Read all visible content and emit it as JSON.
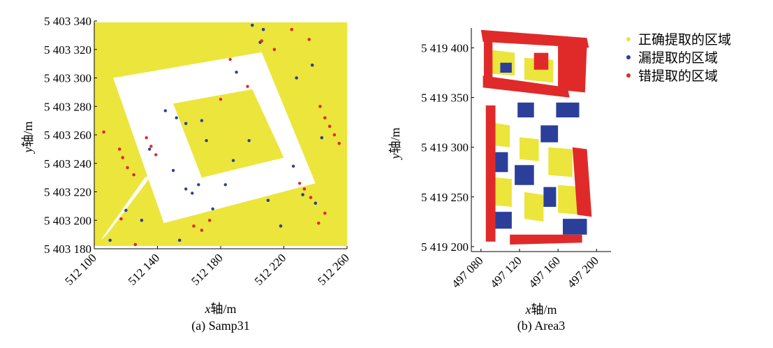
{
  "colors": {
    "correct": "#ece53c",
    "missed": "#2b3f9a",
    "wrong": "#e02a2a"
  },
  "legend": {
    "correct": "正确提取的区域",
    "missed": "漏提取的区域",
    "wrong": "错提取的区域"
  },
  "chart_data": [
    {
      "type": "scatter",
      "caption": "(a) Samp31",
      "xlabel_var": "x",
      "xlabel_rest": "轴/m",
      "ylabel_var": "y",
      "ylabel_rest": "轴/m",
      "xlim": [
        512100,
        512260
      ],
      "ylim": [
        5403180,
        5403340
      ],
      "xticks": [
        512100,
        512140,
        512180,
        512220,
        512260
      ],
      "yticks": [
        5403180,
        5403200,
        5403220,
        5403240,
        5403260,
        5403280,
        5403300,
        5403320,
        5403340
      ],
      "xtick_labels": [
        "512 100",
        "512 140",
        "512 180",
        "512 220",
        "512 260"
      ],
      "ytick_labels": [
        "5 403 180",
        "5 403 200",
        "5 403 220",
        "5 403 240",
        "5 403 260",
        "5 403 280",
        "5 403 300",
        "5 403 320",
        "5 403 340"
      ],
      "series": [
        {
          "name": "正确提取的区域",
          "regions": [
            [
              [
                512100,
                5403339
              ],
              [
                512260,
                5403339
              ],
              [
                512260,
                5403182
              ],
              [
                512100,
                5403182
              ]
            ]
          ]
        },
        {
          "name": "漏提取的区域",
          "points": [
            [
              512145,
              5403277
            ],
            [
              512152,
              5403272
            ],
            [
              512158,
              5403268
            ],
            [
              512168,
              5403270
            ],
            [
              512171,
              5403256
            ],
            [
              512158,
              5403222
            ],
            [
              512162,
              5403219
            ],
            [
              512166,
              5403225
            ],
            [
              512198,
              5403256
            ],
            [
              512188,
              5403242
            ],
            [
              512200,
              5403337
            ],
            [
              512207,
              5403334
            ],
            [
              512190,
              5403304
            ],
            [
              512228,
              5403300
            ],
            [
              512238,
              5403309
            ],
            [
              512232,
              5403218
            ],
            [
              512240,
              5403212
            ],
            [
              512120,
              5403207
            ],
            [
              512130,
              5403200
            ],
            [
              512110,
              5403186
            ],
            [
              512175,
              5403208
            ],
            [
              512183,
              5403225
            ],
            [
              512150,
              5403235
            ],
            [
              512218,
              5403196
            ],
            [
              512244,
              5403258
            ],
            [
              512226,
              5403238
            ],
            [
              512205,
              5403325
            ],
            [
              512210,
              5403214
            ],
            [
              512135,
              5403250
            ],
            [
              512154,
              5403186
            ]
          ]
        },
        {
          "name": "错提取的区域",
          "points": [
            [
              512118,
              5403244
            ],
            [
              512121,
              5403237
            ],
            [
              512125,
              5403232
            ],
            [
              512116,
              5403250
            ],
            [
              512133,
              5403258
            ],
            [
              512136,
              5403252
            ],
            [
              512139,
              5403246
            ],
            [
              512243,
              5403280
            ],
            [
              512246,
              5403272
            ],
            [
              512249,
              5403266
            ],
            [
              512252,
              5403260
            ],
            [
              512255,
              5403254
            ],
            [
              512233,
              5403222
            ],
            [
              512237,
              5403216
            ],
            [
              512230,
              5403226
            ],
            [
              512163,
              5403196
            ],
            [
              512168,
              5403193
            ],
            [
              512173,
              5403200
            ],
            [
              512206,
              5403326
            ],
            [
              512214,
              5403320
            ],
            [
              512236,
              5403327
            ],
            [
              512186,
              5403313
            ],
            [
              512180,
              5403285
            ],
            [
              512197,
              5403294
            ],
            [
              512117,
              5403201
            ],
            [
              512126,
              5403183
            ],
            [
              512246,
              5403205
            ],
            [
              512242,
              5403198
            ],
            [
              512106,
              5403262
            ],
            [
              512225,
              5403334
            ]
          ]
        }
      ]
    },
    {
      "type": "scatter",
      "caption": "(b) Area3",
      "xlabel_var": "x",
      "xlabel_rest": "轴/m",
      "ylabel_var": "y",
      "ylabel_rest": "轴/m",
      "xlim": [
        497070,
        497215
      ],
      "ylim": [
        5419195,
        5419420
      ],
      "xticks": [
        497080,
        497120,
        497160,
        497200
      ],
      "yticks": [
        5419200,
        5419250,
        5419300,
        5419350,
        5419400
      ],
      "xtick_labels": [
        "497 080",
        "497 120",
        "497 160",
        "497 200"
      ],
      "ytick_labels": [
        "5 419 200",
        "5 419 250",
        "5 419 300",
        "5 419 350",
        "5 419 400"
      ],
      "series": [
        {
          "name": "正确提取的区域",
          "regions": [
            [
              [
                497090,
                5419398
              ],
              [
                497115,
                5419395
              ],
              [
                497115,
                5419372
              ],
              [
                497090,
                5419374
              ]
            ],
            [
              [
                497125,
                5419390
              ],
              [
                497155,
                5419388
              ],
              [
                497155,
                5419365
              ],
              [
                497125,
                5419368
              ]
            ],
            [
              [
                497090,
                5419325
              ],
              [
                497110,
                5419322
              ],
              [
                497110,
                5419300
              ],
              [
                497090,
                5419302
              ]
            ],
            [
              [
                497120,
                5419310
              ],
              [
                497140,
                5419308
              ],
              [
                497140,
                5419286
              ],
              [
                497120,
                5419288
              ]
            ],
            [
              [
                497090,
                5419270
              ],
              [
                497112,
                5419268
              ],
              [
                497112,
                5419240
              ],
              [
                497090,
                5419242
              ]
            ],
            [
              [
                497150,
                5419300
              ],
              [
                497175,
                5419298
              ],
              [
                497175,
                5419270
              ],
              [
                497150,
                5419272
              ]
            ],
            [
              [
                497160,
                5419262
              ],
              [
                497185,
                5419260
              ],
              [
                497185,
                5419232
              ],
              [
                497160,
                5419234
              ]
            ],
            [
              [
                497125,
                5419255
              ],
              [
                497145,
                5419252
              ],
              [
                497145,
                5419225
              ],
              [
                497125,
                5419228
              ]
            ]
          ]
        },
        {
          "name": "漏提取的区域",
          "regions": [
            [
              [
                497118,
                5419345
              ],
              [
                497135,
                5419345
              ],
              [
                497135,
                5419330
              ],
              [
                497118,
                5419330
              ]
            ],
            [
              [
                497158,
                5419345
              ],
              [
                497182,
                5419345
              ],
              [
                497182,
                5419330
              ],
              [
                497158,
                5419330
              ]
            ],
            [
              [
                497092,
                5419295
              ],
              [
                497108,
                5419295
              ],
              [
                497108,
                5419275
              ],
              [
                497092,
                5419275
              ]
            ],
            [
              [
                497115,
                5419282
              ],
              [
                497135,
                5419282
              ],
              [
                497135,
                5419262
              ],
              [
                497115,
                5419262
              ]
            ],
            [
              [
                497142,
                5419322
              ],
              [
                497160,
                5419322
              ],
              [
                497160,
                5419305
              ],
              [
                497142,
                5419305
              ]
            ],
            [
              [
                497165,
                5419228
              ],
              [
                497190,
                5419228
              ],
              [
                497190,
                5419212
              ],
              [
                497165,
                5419212
              ]
            ],
            [
              [
                497095,
                5419235
              ],
              [
                497112,
                5419235
              ],
              [
                497112,
                5419218
              ],
              [
                497095,
                5419218
              ]
            ],
            [
              [
                497100,
                5419385
              ],
              [
                497112,
                5419385
              ],
              [
                497112,
                5419375
              ],
              [
                497100,
                5419375
              ]
            ],
            [
              [
                497145,
                5419260
              ],
              [
                497158,
                5419260
              ],
              [
                497158,
                5419240
              ],
              [
                497145,
                5419240
              ]
            ]
          ]
        },
        {
          "name": "错提取的区域",
          "regions": [
            [
              [
                497080,
                5419418
              ],
              [
                497190,
                5419410
              ],
              [
                497192,
                5419400
              ],
              [
                497082,
                5419406
              ]
            ],
            [
              [
                497082,
                5419372
              ],
              [
                497170,
                5419360
              ],
              [
                497172,
                5419350
              ],
              [
                497082,
                5419360
              ]
            ],
            [
              [
                497160,
                5419405
              ],
              [
                497190,
                5419402
              ],
              [
                497188,
                5419355
              ],
              [
                497160,
                5419358
              ]
            ],
            [
              [
                497083,
                5419410
              ],
              [
                497092,
                5419410
              ],
              [
                497092,
                5419360
              ],
              [
                497083,
                5419360
              ]
            ],
            [
              [
                497175,
                5419300
              ],
              [
                497190,
                5419298
              ],
              [
                497195,
                5419230
              ],
              [
                497180,
                5419232
              ]
            ],
            [
              [
                497110,
                5419212
              ],
              [
                497185,
                5419212
              ],
              [
                497185,
                5419204
              ],
              [
                497110,
                5419202
              ]
            ],
            [
              [
                497085,
                5419342
              ],
              [
                497095,
                5419342
              ],
              [
                497095,
                5419205
              ],
              [
                497085,
                5419205
              ]
            ],
            [
              [
                497135,
                5419395
              ],
              [
                497150,
                5419395
              ],
              [
                497150,
                5419378
              ],
              [
                497135,
                5419378
              ]
            ]
          ]
        }
      ]
    }
  ]
}
